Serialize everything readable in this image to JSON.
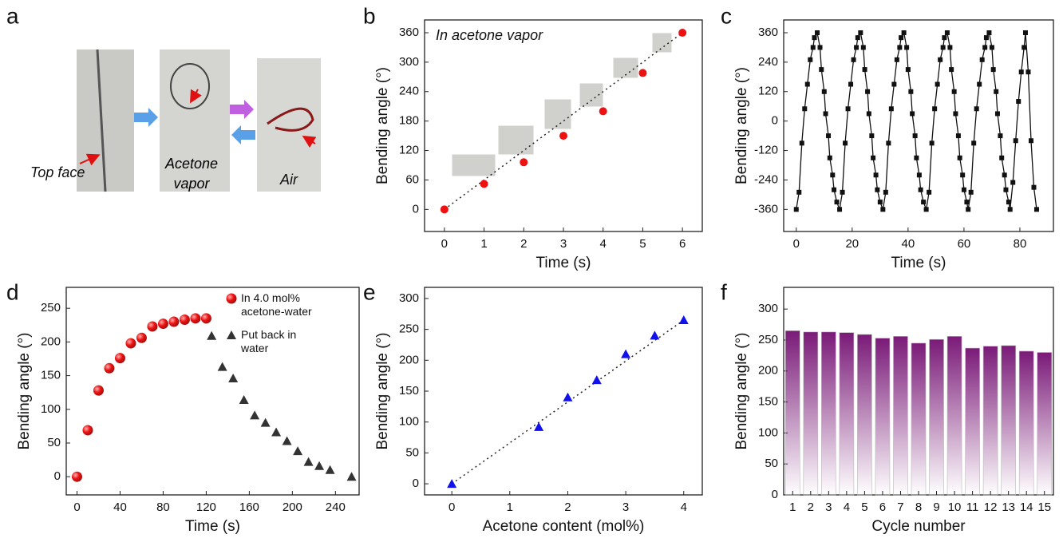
{
  "photo_panel": {
    "label": "a",
    "captions": [
      "Top face",
      "Acetone vapor",
      "Air"
    ]
  },
  "chart_data": [
    {
      "type": "scatter",
      "panel": "b",
      "annotation": "In acetone vapor",
      "xlabel": "Time (s)",
      "ylabel": "Bending angle (°)",
      "xlim": [
        -0.5,
        6.5
      ],
      "ylim": [
        -45,
        386
      ],
      "xticks": [
        0,
        1,
        2,
        3,
        4,
        5,
        6
      ],
      "yticks": [
        0,
        60,
        120,
        180,
        240,
        300,
        360
      ],
      "trendline": true,
      "series": [
        {
          "color": "#ee1111",
          "marker": "circle",
          "x": [
            0,
            1,
            2,
            3,
            4,
            5,
            6
          ],
          "values": [
            0,
            52,
            96,
            150,
            200,
            278,
            360
          ]
        }
      ]
    },
    {
      "type": "line",
      "panel": "c",
      "xlabel": "Time (s)",
      "ylabel": "Bending angle (°)",
      "xlim": [
        -4.5,
        92
      ],
      "ylim": [
        -450,
        412
      ],
      "xticks": [
        0,
        20,
        40,
        60,
        80
      ],
      "yticks": [
        -360,
        -240,
        -120,
        0,
        120,
        240,
        360
      ],
      "series": [
        {
          "color": "#111111",
          "marker": "square",
          "x": [
            0,
            1,
            2,
            3,
            4,
            5,
            6,
            6.5,
            7.5,
            8.5,
            9,
            10,
            10.5,
            11.5,
            12,
            13,
            13.5,
            14.5,
            15.5,
            16.5,
            17.5,
            18.5,
            19.5,
            20.5,
            21.5,
            22,
            23,
            24,
            24.5,
            25.5,
            26,
            27,
            27.5,
            28.5,
            29,
            30,
            31,
            32,
            33,
            34,
            35,
            36,
            37,
            37.5,
            38.5,
            39.5,
            40,
            41,
            41.5,
            42.5,
            43,
            44,
            44.5,
            45.5,
            46.5,
            47.5,
            48.5,
            49.5,
            50.5,
            51.5,
            52.5,
            53,
            54,
            55,
            55.5,
            56.5,
            57,
            58,
            58.5,
            59.5,
            60,
            61,
            61.5,
            62.5,
            63.5,
            64.5,
            65.5,
            66.5,
            67.5,
            68,
            69,
            70,
            70.5,
            71.5,
            72,
            73,
            73.5,
            74.5,
            75,
            76,
            76.5,
            77.5,
            78.5,
            79.5,
            80.5,
            81.5,
            82,
            83,
            84,
            85,
            86
          ],
          "values": [
            -360,
            -290,
            -90,
            50,
            150,
            250,
            300,
            340,
            360,
            300,
            210,
            120,
            30,
            -60,
            -150,
            -220,
            -280,
            -330,
            -360,
            -290,
            -90,
            50,
            150,
            250,
            300,
            340,
            360,
            300,
            210,
            120,
            30,
            -60,
            -150,
            -220,
            -280,
            -330,
            -360,
            -290,
            -90,
            50,
            150,
            250,
            300,
            340,
            360,
            300,
            210,
            120,
            30,
            -60,
            -150,
            -220,
            -280,
            -330,
            -360,
            -290,
            -90,
            50,
            150,
            250,
            300,
            340,
            360,
            300,
            210,
            120,
            30,
            -60,
            -150,
            -220,
            -280,
            -330,
            -360,
            -290,
            -90,
            50,
            150,
            250,
            300,
            340,
            360,
            300,
            210,
            120,
            30,
            -60,
            -150,
            -220,
            -280,
            -330,
            -360,
            -250,
            -80,
            80,
            200,
            300,
            360,
            200,
            -80,
            -270,
            -360
          ]
        }
      ]
    },
    {
      "type": "scatter",
      "panel": "d",
      "xlabel": "Time (s)",
      "ylabel": "Bending angle (°)",
      "xlim": [
        -10,
        262
      ],
      "ylim": [
        -27,
        281
      ],
      "xticks": [
        0,
        40,
        80,
        120,
        160,
        200,
        240
      ],
      "yticks": [
        0,
        50,
        100,
        150,
        200,
        250
      ],
      "legend": "upper right",
      "series": [
        {
          "name": "In 4.0 mol% acetone-water",
          "color": "#ee1111",
          "marker": "sphere",
          "x": [
            0,
            10,
            20,
            30,
            40,
            50,
            60,
            70,
            80,
            90,
            100,
            110,
            120
          ],
          "values": [
            0,
            69,
            128,
            161,
            176,
            198,
            206,
            223,
            227,
            230,
            233,
            235,
            235
          ]
        },
        {
          "name": "Put back in water",
          "color": "#333333",
          "marker": "triangle",
          "x": [
            125,
            135,
            145,
            155,
            165,
            175,
            185,
            195,
            205,
            215,
            225,
            235,
            255
          ],
          "values": [
            209,
            163,
            146,
            114,
            91,
            80,
            66,
            53,
            38,
            22,
            16,
            10,
            0
          ]
        }
      ]
    },
    {
      "type": "scatter",
      "panel": "e",
      "xlabel": "Acetone content (mol%)",
      "ylabel": "Bending angle (°)",
      "xlim": [
        -0.47,
        4.32
      ],
      "ylim": [
        -18,
        318
      ],
      "xticks": [
        0,
        1,
        2,
        3,
        4
      ],
      "yticks": [
        0,
        50,
        100,
        150,
        200,
        250,
        300
      ],
      "trendline": true,
      "series": [
        {
          "color": "#1111ee",
          "marker": "triangle",
          "x": [
            0,
            1.5,
            2,
            2.5,
            3,
            3.5,
            4
          ],
          "values": [
            0,
            92,
            140,
            168,
            210,
            240,
            265
          ]
        }
      ]
    },
    {
      "type": "bar",
      "panel": "f",
      "xlabel": "Cycle number",
      "ylabel": "Bending angle (°)",
      "ylim": [
        0,
        335
      ],
      "yticks": [
        0,
        50,
        100,
        150,
        200,
        250,
        300
      ],
      "color": "#7a1a78",
      "categories": [
        "1",
        "2",
        "3",
        "4",
        "5",
        "6",
        "7",
        "8",
        "9",
        "10",
        "11",
        "12",
        "13",
        "14",
        "15"
      ],
      "values": [
        265,
        263,
        263,
        262,
        259,
        253,
        256,
        245,
        251,
        256,
        237,
        240,
        241,
        232,
        230
      ]
    }
  ]
}
